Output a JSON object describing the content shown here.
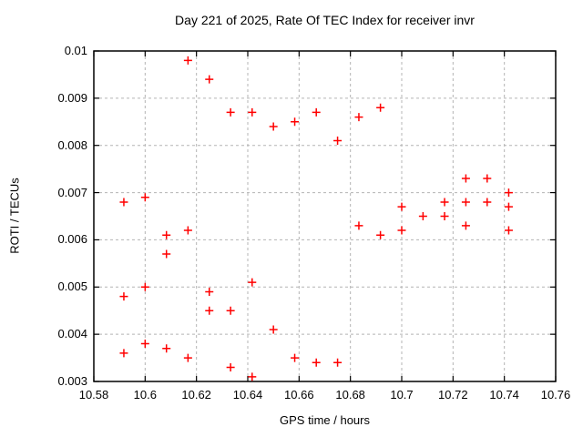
{
  "chart_data": {
    "type": "scatter",
    "title": "Day 221 of 2025, Rate Of TEC Index for receiver invr",
    "xlabel": "GPS time / hours",
    "ylabel": "ROTI / TECUs",
    "xlim": [
      10.58,
      10.76
    ],
    "ylim": [
      0.003,
      0.01
    ],
    "xticks": [
      10.58,
      10.6,
      10.62,
      10.64,
      10.66,
      10.68,
      10.7,
      10.72,
      10.74,
      10.76
    ],
    "xtick_labels": [
      "10.58",
      "10.6",
      "10.62",
      "10.64",
      "10.66",
      "10.68",
      "10.7",
      "10.72",
      "10.74",
      "10.76"
    ],
    "yticks": [
      0.003,
      0.004,
      0.005,
      0.006,
      0.007,
      0.008,
      0.009,
      0.01
    ],
    "ytick_labels": [
      "0.003",
      "0.004",
      "0.005",
      "0.006",
      "0.007",
      "0.008",
      "0.009",
      "0.01"
    ],
    "grid": true,
    "legend": "none",
    "marker": "plus",
    "colors": {
      "marker": "#ff0000",
      "grid": "#b4b4b4",
      "frame": "#000000",
      "text": "#000000",
      "background": "#ffffff"
    },
    "series": [
      {
        "name": "ROTI",
        "points": [
          [
            10.5917,
            0.0068
          ],
          [
            10.5917,
            0.0048
          ],
          [
            10.5917,
            0.0036
          ],
          [
            10.6,
            0.0069
          ],
          [
            10.6,
            0.005
          ],
          [
            10.6,
            0.0038
          ],
          [
            10.6083,
            0.0061
          ],
          [
            10.6083,
            0.0057
          ],
          [
            10.6083,
            0.0037
          ],
          [
            10.6167,
            0.0098
          ],
          [
            10.6167,
            0.0062
          ],
          [
            10.6167,
            0.0035
          ],
          [
            10.625,
            0.0094
          ],
          [
            10.625,
            0.0049
          ],
          [
            10.625,
            0.0045
          ],
          [
            10.6333,
            0.0087
          ],
          [
            10.6333,
            0.0045
          ],
          [
            10.6333,
            0.0033
          ],
          [
            10.6417,
            0.0087
          ],
          [
            10.6417,
            0.0051
          ],
          [
            10.6417,
            0.0031
          ],
          [
            10.65,
            0.0084
          ],
          [
            10.65,
            0.0041
          ],
          [
            10.6583,
            0.0085
          ],
          [
            10.6583,
            0.0035
          ],
          [
            10.6667,
            0.0087
          ],
          [
            10.6667,
            0.0034
          ],
          [
            10.675,
            0.0081
          ],
          [
            10.675,
            0.0034
          ],
          [
            10.6833,
            0.0086
          ],
          [
            10.6833,
            0.0063
          ],
          [
            10.6917,
            0.0088
          ],
          [
            10.6917,
            0.0061
          ],
          [
            10.7,
            0.0067
          ],
          [
            10.7,
            0.0062
          ],
          [
            10.7083,
            0.0065
          ],
          [
            10.7167,
            0.0068
          ],
          [
            10.7167,
            0.0065
          ],
          [
            10.725,
            0.0073
          ],
          [
            10.725,
            0.0068
          ],
          [
            10.725,
            0.0063
          ],
          [
            10.7333,
            0.0073
          ],
          [
            10.7333,
            0.0068
          ],
          [
            10.7417,
            0.007
          ],
          [
            10.7417,
            0.0067
          ],
          [
            10.7417,
            0.0062
          ]
        ]
      }
    ]
  }
}
